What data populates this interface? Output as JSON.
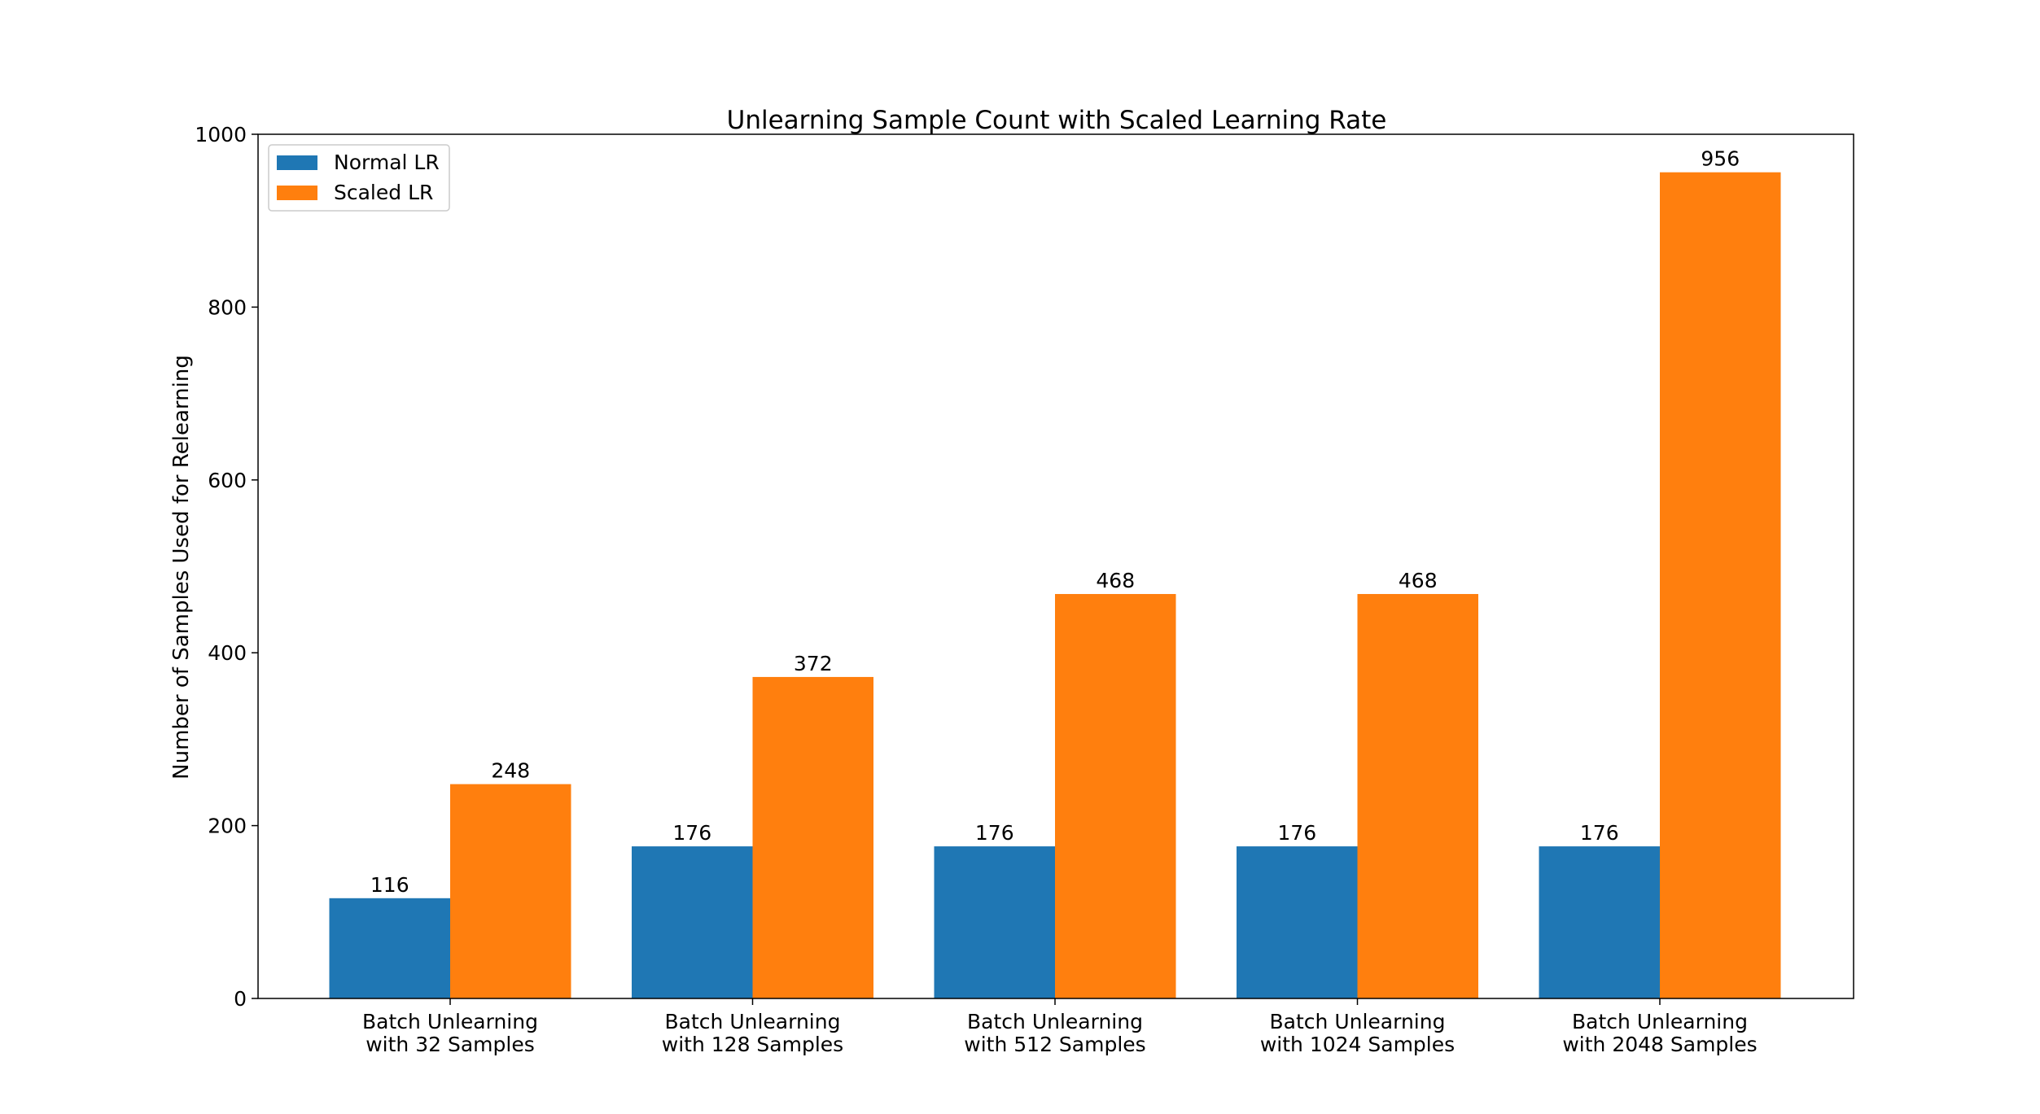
{
  "chart_data": {
    "type": "bar",
    "title": "Unlearning Sample Count with Scaled Learning Rate",
    "xlabel": "",
    "ylabel": "Number of Samples Used for Relearning",
    "categories": [
      "Batch Unlearning\nwith 32 Samples",
      "Batch Unlearning\nwith 128 Samples",
      "Batch Unlearning\nwith 512 Samples",
      "Batch Unlearning\nwith 1024 Samples",
      "Batch Unlearning\nwith 2048 Samples"
    ],
    "series": [
      {
        "name": "Normal LR",
        "color": "#1f77b4",
        "values": [
          116,
          176,
          176,
          176,
          176
        ]
      },
      {
        "name": "Scaled LR",
        "color": "#ff7f0e",
        "values": [
          248,
          372,
          468,
          468,
          956
        ]
      }
    ],
    "ylim": [
      0,
      1000
    ],
    "yticks": [
      0,
      200,
      400,
      600,
      800,
      1000
    ],
    "grid": false,
    "legend_position": "top-left",
    "show_value_labels": true
  }
}
